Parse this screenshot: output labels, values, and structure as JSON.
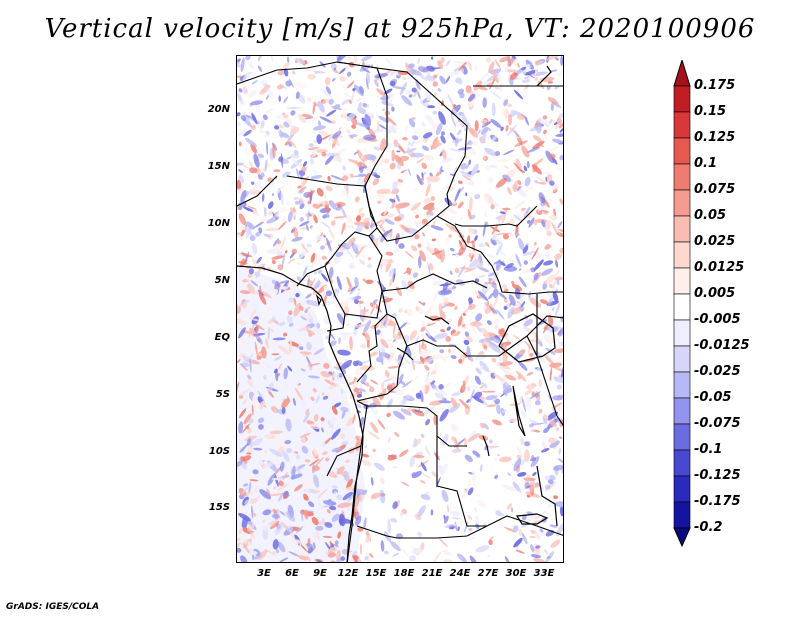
{
  "title": "Vertical velocity [m/s] at 925hPa, VT: 2020100906",
  "credit": "GrADS: IGES/COLA",
  "axes": {
    "lat_labels": [
      "20N",
      "15N",
      "10N",
      "5N",
      "EQ",
      "5S",
      "10S",
      "15S"
    ],
    "lon_labels": [
      "3E",
      "6E",
      "9E",
      "12E",
      "15E",
      "18E",
      "21E",
      "24E",
      "27E",
      "30E",
      "33E"
    ]
  },
  "colorbar": {
    "levels": [
      "0.175",
      "0.15",
      "0.125",
      "0.1",
      "0.075",
      "0.05",
      "0.025",
      "0.0125",
      "0.005",
      "-0.005",
      "-0.0125",
      "-0.025",
      "-0.05",
      "-0.075",
      "-0.1",
      "-0.125",
      "-0.175",
      "-0.2"
    ],
    "colors": [
      "#a8101a",
      "#c01e24",
      "#d8383a",
      "#e65850",
      "#ef7c70",
      "#f59c90",
      "#f9bcb2",
      "#fcd8d0",
      "#feefec",
      "#ffffff",
      "#eeeeff",
      "#d6d6fb",
      "#b8b8f6",
      "#9494ee",
      "#6c6ce2",
      "#4848d2",
      "#2a2abc",
      "#1414a0",
      "#0a0a80"
    ]
  }
}
